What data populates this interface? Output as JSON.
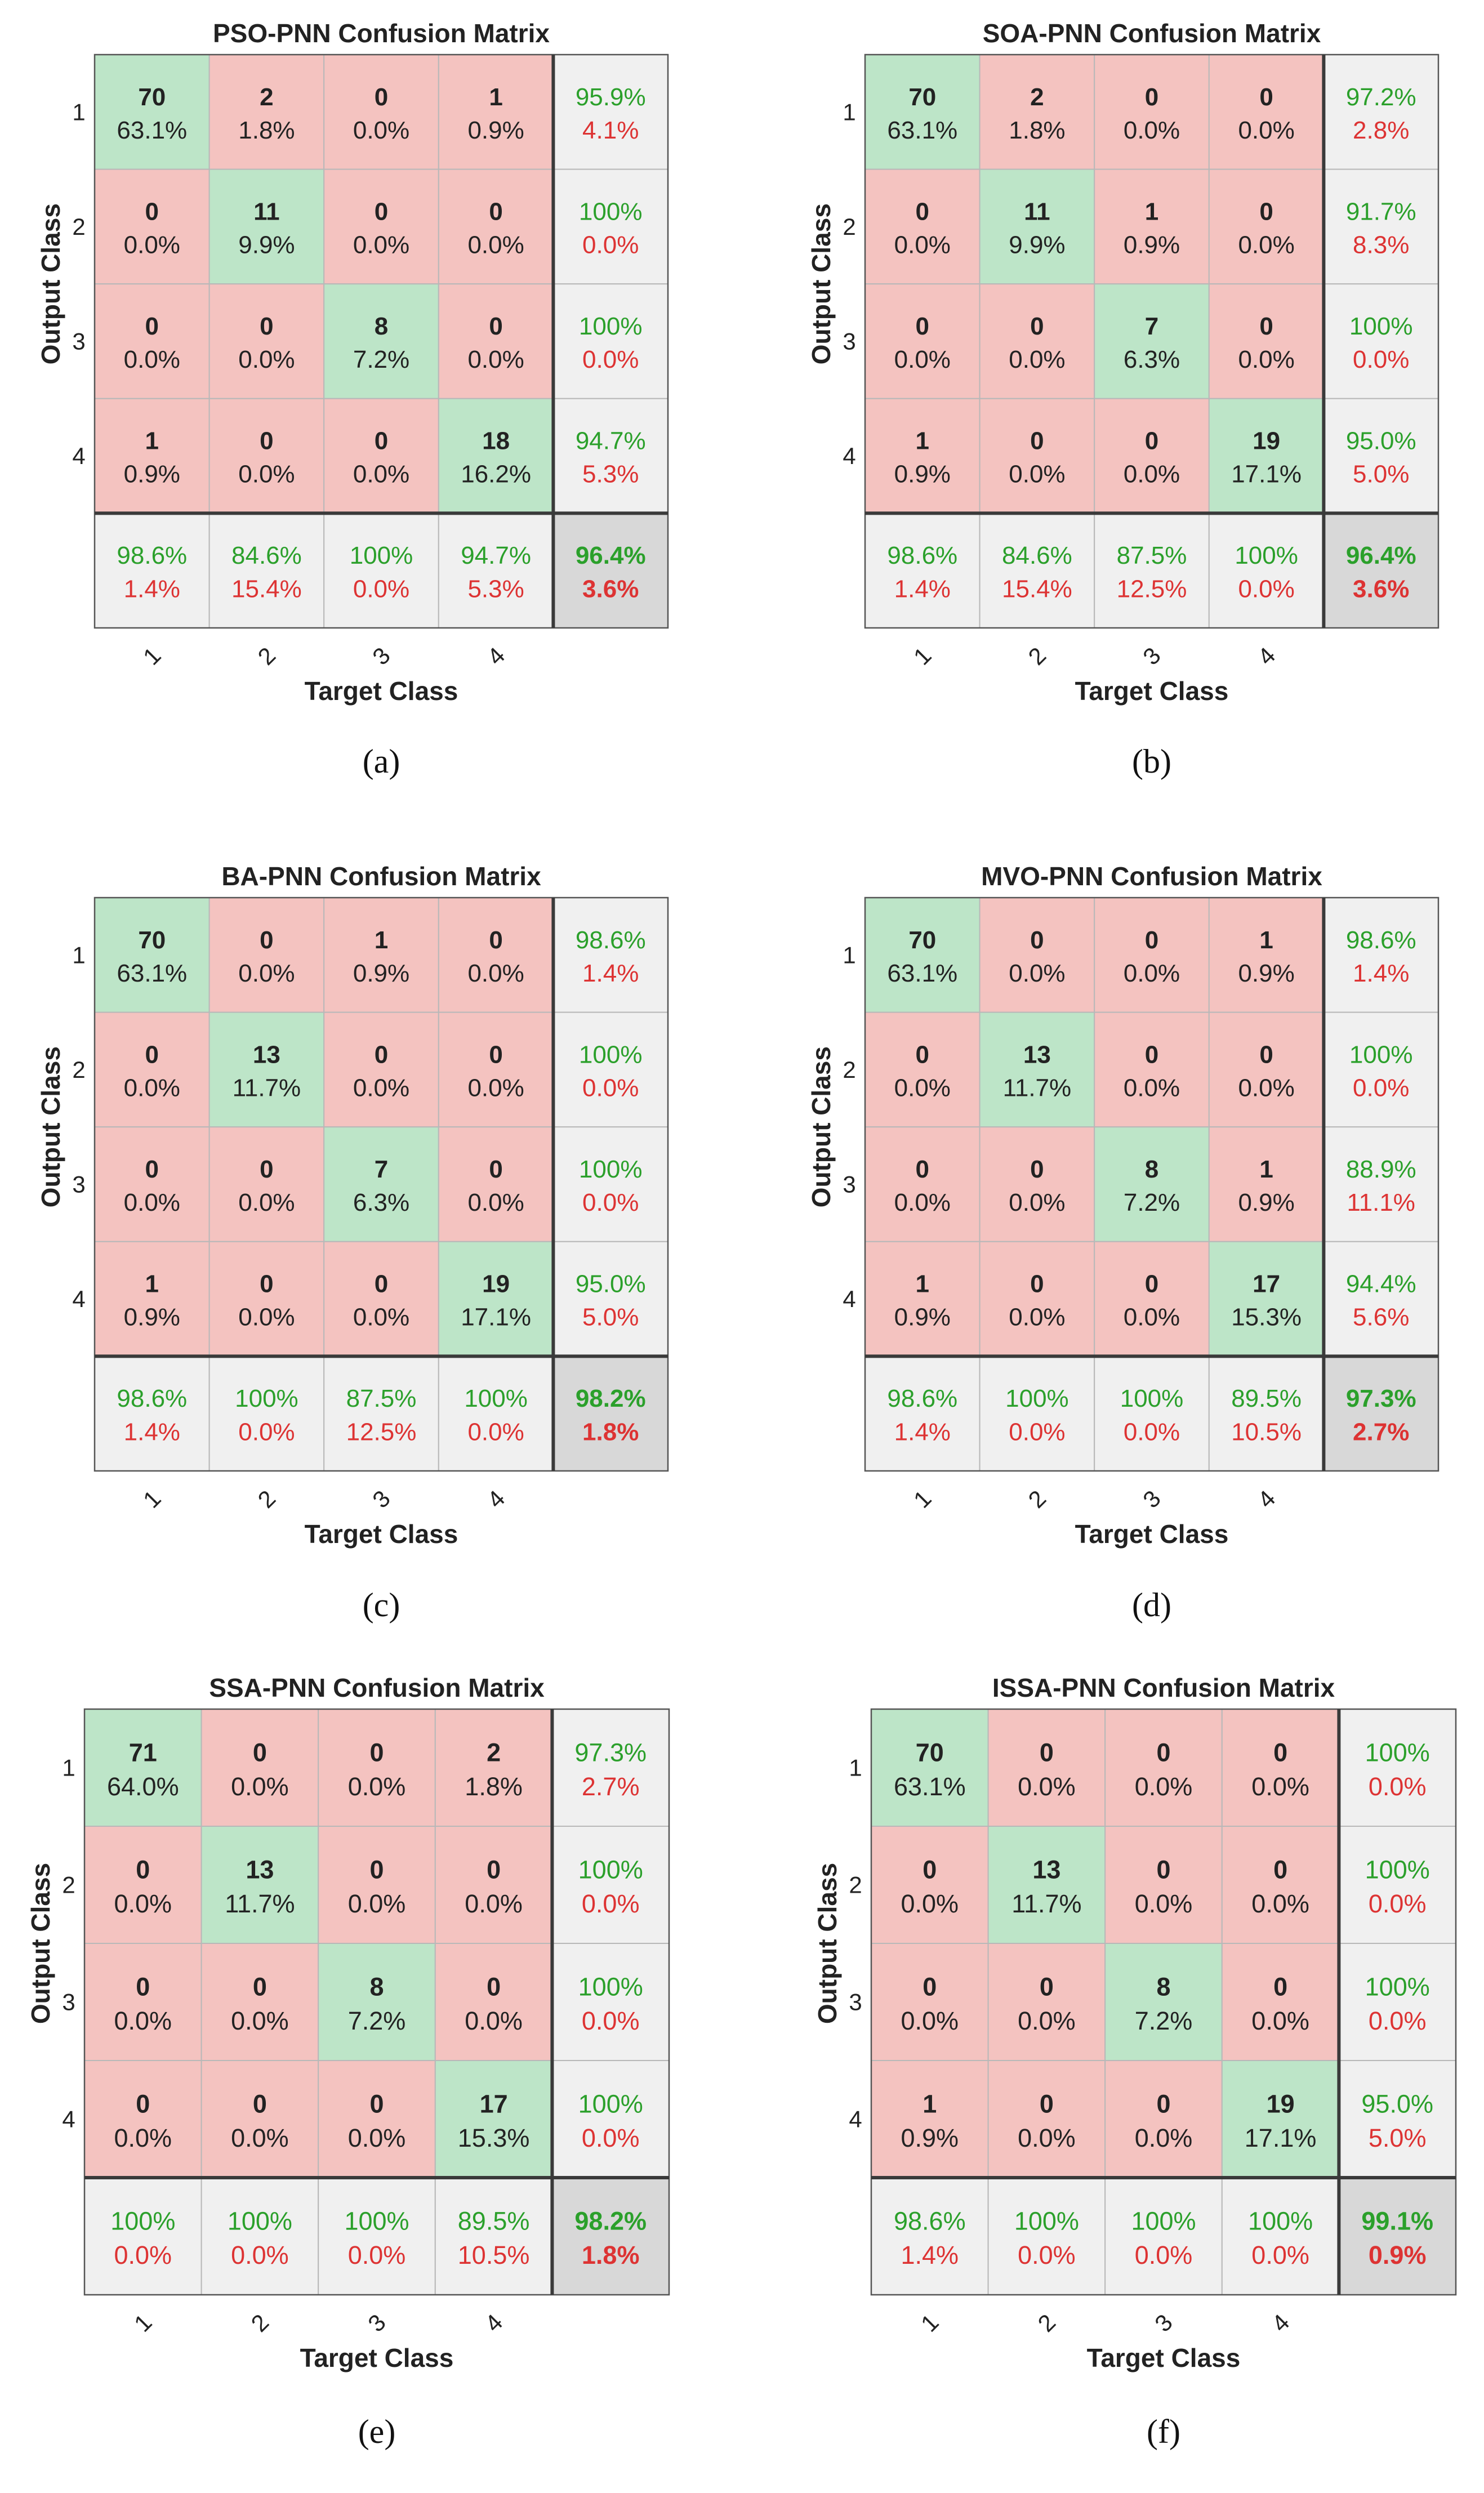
{
  "figure": {
    "panels": [
      {
        "caption": "(a)",
        "caption_letter": "a"
      },
      {
        "caption": "(b)",
        "caption_letter": "b"
      },
      {
        "caption": "(c)",
        "caption_letter": "c"
      },
      {
        "caption": "(d)",
        "caption_letter": "d"
      },
      {
        "caption": "(e)",
        "caption_letter": "e"
      },
      {
        "caption": "(f)",
        "caption_letter": "f"
      }
    ]
  },
  "colors": {
    "correct_fill": "#bde5c8",
    "wrong_fill": "#f4c3c0",
    "summary_fill": "#f0f0f0",
    "overall_fill": "#d8d8d8",
    "green_text": "#2ba02b",
    "red_text": "#dd3333",
    "grid": "#b8b8b8",
    "frame": "#555555",
    "text": "#222222"
  },
  "chart_data": [
    {
      "type": "heatmap",
      "subtype": "confusion-matrix",
      "title": "PSO-PNN Confusion Matrix",
      "xlabel": "Target Class",
      "ylabel": "Output Class",
      "classes": [
        "1",
        "2",
        "3",
        "4"
      ],
      "counts": [
        [
          70,
          2,
          0,
          1
        ],
        [
          0,
          11,
          0,
          0
        ],
        [
          0,
          0,
          8,
          0
        ],
        [
          1,
          0,
          0,
          18
        ]
      ],
      "percents": [
        [
          "63.1%",
          "1.8%",
          "0.0%",
          "0.9%"
        ],
        [
          "0.0%",
          "9.9%",
          "0.0%",
          "0.0%"
        ],
        [
          "0.0%",
          "0.0%",
          "7.2%",
          "0.0%"
        ],
        [
          "0.9%",
          "0.0%",
          "0.0%",
          "16.2%"
        ]
      ],
      "row_summary": [
        [
          "95.9%",
          "4.1%"
        ],
        [
          "100%",
          "0.0%"
        ],
        [
          "100%",
          "0.0%"
        ],
        [
          "94.7%",
          "5.3%"
        ]
      ],
      "col_summary": [
        [
          "98.6%",
          "1.4%"
        ],
        [
          "84.6%",
          "15.4%"
        ],
        [
          "100%",
          "0.0%"
        ],
        [
          "94.7%",
          "5.3%"
        ]
      ],
      "overall": [
        "96.4%",
        "3.6%"
      ]
    },
    {
      "type": "heatmap",
      "subtype": "confusion-matrix",
      "title": "SOA-PNN Confusion Matrix",
      "xlabel": "Target Class",
      "ylabel": "Output Class",
      "classes": [
        "1",
        "2",
        "3",
        "4"
      ],
      "counts": [
        [
          70,
          2,
          0,
          0
        ],
        [
          0,
          11,
          1,
          0
        ],
        [
          0,
          0,
          7,
          0
        ],
        [
          1,
          0,
          0,
          19
        ]
      ],
      "percents": [
        [
          "63.1%",
          "1.8%",
          "0.0%",
          "0.0%"
        ],
        [
          "0.0%",
          "9.9%",
          "0.9%",
          "0.0%"
        ],
        [
          "0.0%",
          "0.0%",
          "6.3%",
          "0.0%"
        ],
        [
          "0.9%",
          "0.0%",
          "0.0%",
          "17.1%"
        ]
      ],
      "row_summary": [
        [
          "97.2%",
          "2.8%"
        ],
        [
          "91.7%",
          "8.3%"
        ],
        [
          "100%",
          "0.0%"
        ],
        [
          "95.0%",
          "5.0%"
        ]
      ],
      "col_summary": [
        [
          "98.6%",
          "1.4%"
        ],
        [
          "84.6%",
          "15.4%"
        ],
        [
          "87.5%",
          "12.5%"
        ],
        [
          "100%",
          "0.0%"
        ]
      ],
      "overall": [
        "96.4%",
        "3.6%"
      ]
    },
    {
      "type": "heatmap",
      "subtype": "confusion-matrix",
      "title": "BA-PNN Confusion Matrix",
      "xlabel": "Target Class",
      "ylabel": "Output Class",
      "classes": [
        "1",
        "2",
        "3",
        "4"
      ],
      "counts": [
        [
          70,
          0,
          1,
          0
        ],
        [
          0,
          13,
          0,
          0
        ],
        [
          0,
          0,
          7,
          0
        ],
        [
          1,
          0,
          0,
          19
        ]
      ],
      "percents": [
        [
          "63.1%",
          "0.0%",
          "0.9%",
          "0.0%"
        ],
        [
          "0.0%",
          "11.7%",
          "0.0%",
          "0.0%"
        ],
        [
          "0.0%",
          "0.0%",
          "6.3%",
          "0.0%"
        ],
        [
          "0.9%",
          "0.0%",
          "0.0%",
          "17.1%"
        ]
      ],
      "row_summary": [
        [
          "98.6%",
          "1.4%"
        ],
        [
          "100%",
          "0.0%"
        ],
        [
          "100%",
          "0.0%"
        ],
        [
          "95.0%",
          "5.0%"
        ]
      ],
      "col_summary": [
        [
          "98.6%",
          "1.4%"
        ],
        [
          "100%",
          "0.0%"
        ],
        [
          "87.5%",
          "12.5%"
        ],
        [
          "100%",
          "0.0%"
        ]
      ],
      "overall": [
        "98.2%",
        "1.8%"
      ]
    },
    {
      "type": "heatmap",
      "subtype": "confusion-matrix",
      "title": "MVO-PNN Confusion Matrix",
      "xlabel": "Target Class",
      "ylabel": "Output Class",
      "classes": [
        "1",
        "2",
        "3",
        "4"
      ],
      "counts": [
        [
          70,
          0,
          0,
          1
        ],
        [
          0,
          13,
          0,
          0
        ],
        [
          0,
          0,
          8,
          1
        ],
        [
          1,
          0,
          0,
          17
        ]
      ],
      "percents": [
        [
          "63.1%",
          "0.0%",
          "0.0%",
          "0.9%"
        ],
        [
          "0.0%",
          "11.7%",
          "0.0%",
          "0.0%"
        ],
        [
          "0.0%",
          "0.0%",
          "7.2%",
          "0.9%"
        ],
        [
          "0.9%",
          "0.0%",
          "0.0%",
          "15.3%"
        ]
      ],
      "row_summary": [
        [
          "98.6%",
          "1.4%"
        ],
        [
          "100%",
          "0.0%"
        ],
        [
          "88.9%",
          "11.1%"
        ],
        [
          "94.4%",
          "5.6%"
        ]
      ],
      "col_summary": [
        [
          "98.6%",
          "1.4%"
        ],
        [
          "100%",
          "0.0%"
        ],
        [
          "100%",
          "0.0%"
        ],
        [
          "89.5%",
          "10.5%"
        ]
      ],
      "overall": [
        "97.3%",
        "2.7%"
      ]
    },
    {
      "type": "heatmap",
      "subtype": "confusion-matrix",
      "title": "SSA-PNN Confusion Matrix",
      "xlabel": "Target Class",
      "ylabel": "Output Class",
      "classes": [
        "1",
        "2",
        "3",
        "4"
      ],
      "counts": [
        [
          71,
          0,
          0,
          2
        ],
        [
          0,
          13,
          0,
          0
        ],
        [
          0,
          0,
          8,
          0
        ],
        [
          0,
          0,
          0,
          17
        ]
      ],
      "percents": [
        [
          "64.0%",
          "0.0%",
          "0.0%",
          "1.8%"
        ],
        [
          "0.0%",
          "11.7%",
          "0.0%",
          "0.0%"
        ],
        [
          "0.0%",
          "0.0%",
          "7.2%",
          "0.0%"
        ],
        [
          "0.0%",
          "0.0%",
          "0.0%",
          "15.3%"
        ]
      ],
      "row_summary": [
        [
          "97.3%",
          "2.7%"
        ],
        [
          "100%",
          "0.0%"
        ],
        [
          "100%",
          "0.0%"
        ],
        [
          "100%",
          "0.0%"
        ]
      ],
      "col_summary": [
        [
          "100%",
          "0.0%"
        ],
        [
          "100%",
          "0.0%"
        ],
        [
          "100%",
          "0.0%"
        ],
        [
          "89.5%",
          "10.5%"
        ]
      ],
      "overall": [
        "98.2%",
        "1.8%"
      ]
    },
    {
      "type": "heatmap",
      "subtype": "confusion-matrix",
      "title": "ISSA-PNN Confusion Matrix",
      "xlabel": "Target Class",
      "ylabel": "Output Class",
      "classes": [
        "1",
        "2",
        "3",
        "4"
      ],
      "counts": [
        [
          70,
          0,
          0,
          0
        ],
        [
          0,
          13,
          0,
          0
        ],
        [
          0,
          0,
          8,
          0
        ],
        [
          1,
          0,
          0,
          19
        ]
      ],
      "percents": [
        [
          "63.1%",
          "0.0%",
          "0.0%",
          "0.0%"
        ],
        [
          "0.0%",
          "11.7%",
          "0.0%",
          "0.0%"
        ],
        [
          "0.0%",
          "0.0%",
          "7.2%",
          "0.0%"
        ],
        [
          "0.9%",
          "0.0%",
          "0.0%",
          "17.1%"
        ]
      ],
      "row_summary": [
        [
          "100%",
          "0.0%"
        ],
        [
          "100%",
          "0.0%"
        ],
        [
          "100%",
          "0.0%"
        ],
        [
          "95.0%",
          "5.0%"
        ]
      ],
      "col_summary": [
        [
          "98.6%",
          "1.4%"
        ],
        [
          "100%",
          "0.0%"
        ],
        [
          "100%",
          "0.0%"
        ],
        [
          "100%",
          "0.0%"
        ]
      ],
      "overall": [
        "99.1%",
        "0.9%"
      ]
    }
  ]
}
